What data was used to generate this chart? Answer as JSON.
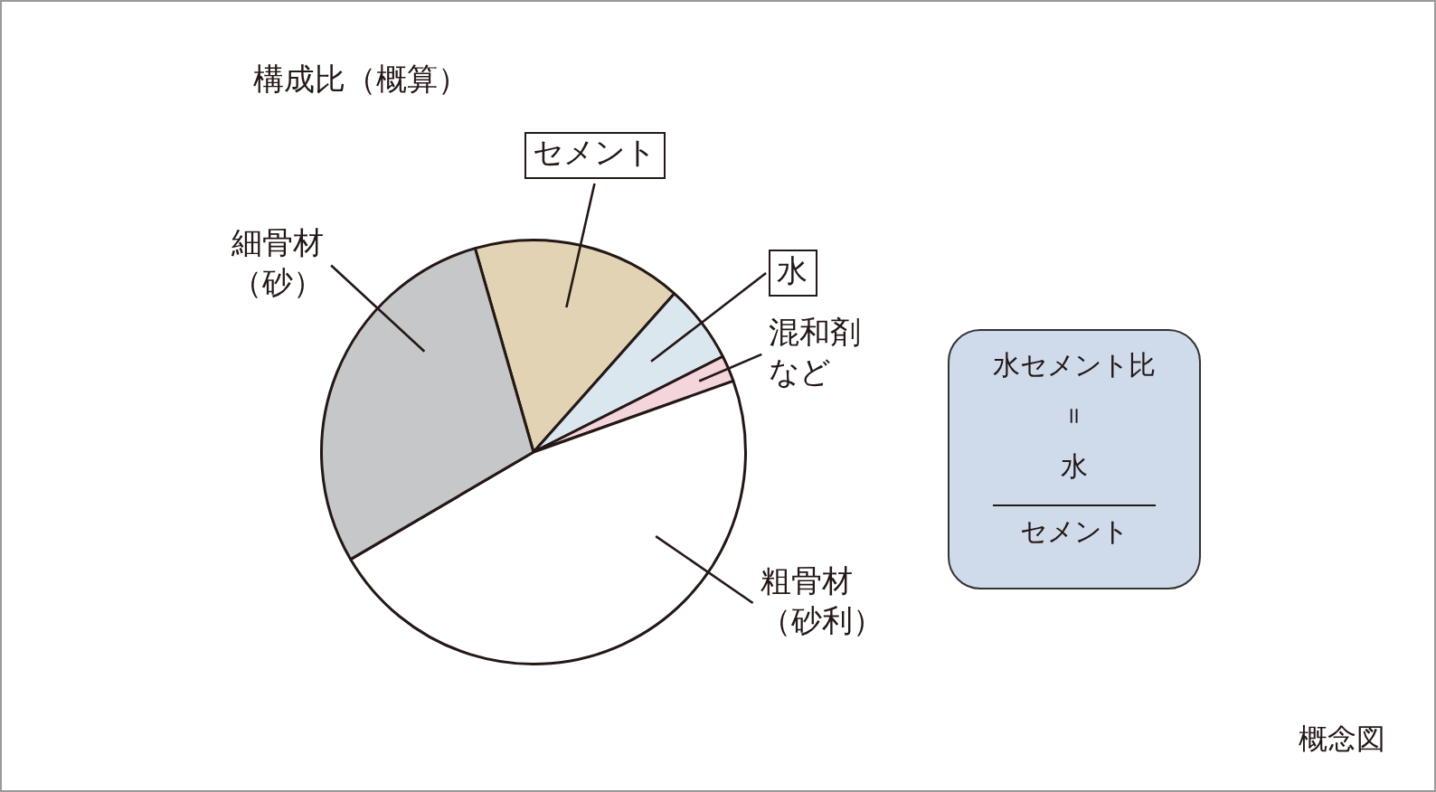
{
  "chart_data": {
    "type": "pie",
    "title": "構成比（概算）",
    "categories": [
      "セメント",
      "水",
      "混和剤など",
      "粗骨材（砂利）",
      "細骨材（砂）"
    ],
    "values": [
      16,
      6,
      2,
      47,
      29
    ],
    "colors": [
      "#e3d3b5",
      "#dbe7ef",
      "#f5d5dc",
      "#ffffff",
      "#c6c7c9"
    ],
    "annotations": [
      "水セメント比",
      "＝",
      "水",
      "セメント",
      "概念図"
    ]
  }
}
